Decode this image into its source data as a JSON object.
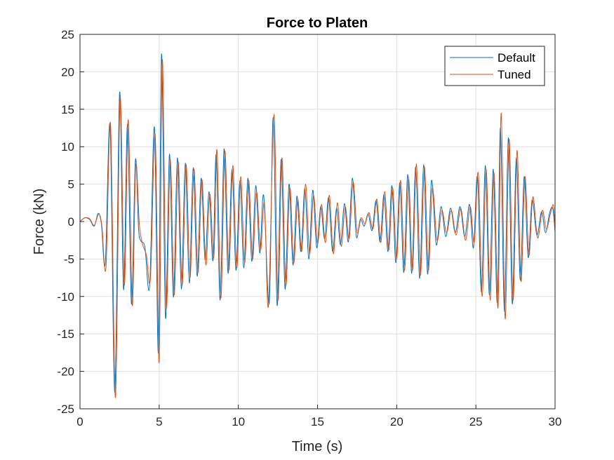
{
  "chart_data": {
    "type": "line",
    "title": "Force to Platen",
    "xlabel": "Time (s)",
    "ylabel": "Force (kN)",
    "xlim": [
      0,
      30
    ],
    "ylim": [
      -25,
      25
    ],
    "xticks": [
      0,
      5,
      10,
      15,
      20,
      25,
      30
    ],
    "yticks": [
      25,
      20,
      15,
      10,
      5,
      0,
      -5,
      -10,
      -15,
      -20,
      -25
    ],
    "grid": true,
    "legend_position": "top-right",
    "series": [
      {
        "name": "Default",
        "color": "#0072BD",
        "points": [
          [
            0,
            0
          ],
          [
            0.3,
            0.5
          ],
          [
            0.6,
            0.3
          ],
          [
            0.9,
            -0.6
          ],
          [
            1.15,
            1.1
          ],
          [
            1.35,
            -0.3
          ],
          [
            1.6,
            -5.5
          ],
          [
            1.9,
            12.8
          ],
          [
            2.2,
            -22.8
          ],
          [
            2.5,
            17.2
          ],
          [
            2.75,
            -9.1
          ],
          [
            3.0,
            13.0
          ],
          [
            3.25,
            -11.0
          ],
          [
            3.5,
            8.2
          ],
          [
            3.7,
            -1.0
          ],
          [
            3.85,
            -2.6
          ],
          [
            4.1,
            -3.4
          ],
          [
            4.4,
            -8.6
          ],
          [
            4.7,
            12.6
          ],
          [
            4.95,
            -17.5
          ],
          [
            5.15,
            22.4
          ],
          [
            5.4,
            -12.8
          ],
          [
            5.65,
            9.0
          ],
          [
            5.9,
            -10.1
          ],
          [
            6.15,
            8.5
          ],
          [
            6.4,
            -9.0
          ],
          [
            6.65,
            7.8
          ],
          [
            6.9,
            -8.2
          ],
          [
            7.15,
            7.2
          ],
          [
            7.4,
            -7.3
          ],
          [
            7.65,
            5.8
          ],
          [
            7.9,
            -5.1
          ],
          [
            8.15,
            4.0
          ],
          [
            8.4,
            -5.2
          ],
          [
            8.6,
            8.9
          ],
          [
            8.85,
            -10.5
          ],
          [
            9.1,
            9.7
          ],
          [
            9.35,
            -6.9
          ],
          [
            9.6,
            7.0
          ],
          [
            9.85,
            -6.5
          ],
          [
            10.1,
            5.5
          ],
          [
            10.35,
            -6.2
          ],
          [
            10.6,
            5.8
          ],
          [
            10.85,
            -5.3
          ],
          [
            11.1,
            4.8
          ],
          [
            11.35,
            -4.2
          ],
          [
            11.6,
            3.5
          ],
          [
            11.95,
            -10.9
          ],
          [
            12.2,
            13.9
          ],
          [
            12.45,
            -11.2
          ],
          [
            12.7,
            8.3
          ],
          [
            12.95,
            -9.0
          ],
          [
            13.2,
            5.0
          ],
          [
            13.45,
            -5.8
          ],
          [
            13.7,
            3.4
          ],
          [
            13.95,
            -4.0
          ],
          [
            14.2,
            4.4
          ],
          [
            14.45,
            -5.0
          ],
          [
            14.7,
            4.2
          ],
          [
            14.95,
            -3.5
          ],
          [
            15.2,
            2.0
          ],
          [
            15.45,
            -2.3
          ],
          [
            15.7,
            3.2
          ],
          [
            15.95,
            -4.0
          ],
          [
            16.2,
            1.8
          ],
          [
            16.45,
            -3.1
          ],
          [
            16.7,
            2.4
          ],
          [
            16.95,
            -2.7
          ],
          [
            17.2,
            5.8
          ],
          [
            17.45,
            -2.0
          ],
          [
            17.7,
            0.3
          ],
          [
            17.95,
            -0.6
          ],
          [
            18.2,
            1.0
          ],
          [
            18.45,
            -1.2
          ],
          [
            18.7,
            2.8
          ],
          [
            18.95,
            -2.7
          ],
          [
            19.2,
            3.6
          ],
          [
            19.45,
            -4.0
          ],
          [
            19.7,
            4.8
          ],
          [
            19.95,
            -5.5
          ],
          [
            20.2,
            5.2
          ],
          [
            20.45,
            -6.8
          ],
          [
            20.7,
            6.3
          ],
          [
            20.95,
            -6.9
          ],
          [
            21.2,
            7.3
          ],
          [
            21.45,
            -7.6
          ],
          [
            21.7,
            7.6
          ],
          [
            21.95,
            -7.0
          ],
          [
            22.2,
            5.5
          ],
          [
            22.5,
            -3.1
          ],
          [
            22.8,
            2.0
          ],
          [
            23.1,
            -2.0
          ],
          [
            23.4,
            1.8
          ],
          [
            23.7,
            -1.5
          ],
          [
            24.0,
            2.0
          ],
          [
            24.3,
            -2.0
          ],
          [
            24.6,
            2.3
          ],
          [
            24.85,
            -3.5
          ],
          [
            25.1,
            6.0
          ],
          [
            25.35,
            -9.4
          ],
          [
            25.6,
            7.5
          ],
          [
            25.85,
            -9.8
          ],
          [
            26.1,
            7.0
          ],
          [
            26.35,
            -10.8
          ],
          [
            26.55,
            12.5
          ],
          [
            26.8,
            -12.0
          ],
          [
            27.05,
            11.2
          ],
          [
            27.3,
            -11.0
          ],
          [
            27.55,
            8.5
          ],
          [
            27.8,
            -7.8
          ],
          [
            28.05,
            6.0
          ],
          [
            28.3,
            -4.8
          ],
          [
            28.55,
            2.9
          ],
          [
            28.85,
            -1.8
          ],
          [
            29.15,
            1.3
          ],
          [
            29.4,
            -1.5
          ],
          [
            29.65,
            1.1
          ],
          [
            29.85,
            1.8
          ],
          [
            30,
            -1.4
          ]
        ]
      },
      {
        "name": "Tuned",
        "color": "#D95319",
        "points": [
          [
            0,
            0
          ],
          [
            0.3,
            0.5
          ],
          [
            0.6,
            0.4
          ],
          [
            0.9,
            -0.5
          ],
          [
            1.18,
            1.0
          ],
          [
            1.38,
            -0.5
          ],
          [
            1.64,
            -6.2
          ],
          [
            1.93,
            13.0
          ],
          [
            2.24,
            -23.5
          ],
          [
            2.53,
            16.5
          ],
          [
            2.8,
            -8.5
          ],
          [
            3.05,
            13.6
          ],
          [
            3.3,
            -11.2
          ],
          [
            3.52,
            7.5
          ],
          [
            3.75,
            -0.4
          ],
          [
            3.95,
            -3.0
          ],
          [
            4.2,
            -4.5
          ],
          [
            4.45,
            -7.5
          ],
          [
            4.75,
            11.6
          ],
          [
            5.0,
            -18.8
          ],
          [
            5.2,
            21.6
          ],
          [
            5.45,
            -11.5
          ],
          [
            5.7,
            8.3
          ],
          [
            5.95,
            -9.8
          ],
          [
            6.2,
            8.0
          ],
          [
            6.45,
            -8.5
          ],
          [
            6.7,
            7.6
          ],
          [
            6.95,
            -7.5
          ],
          [
            7.2,
            7.0
          ],
          [
            7.45,
            -6.8
          ],
          [
            7.7,
            5.6
          ],
          [
            7.95,
            -5.8
          ],
          [
            8.2,
            3.7
          ],
          [
            8.45,
            -4.8
          ],
          [
            8.65,
            9.6
          ],
          [
            8.9,
            -10.2
          ],
          [
            9.15,
            9.4
          ],
          [
            9.4,
            -6.5
          ],
          [
            9.65,
            7.5
          ],
          [
            9.9,
            -6.2
          ],
          [
            10.15,
            6.0
          ],
          [
            10.4,
            -5.5
          ],
          [
            10.65,
            5.5
          ],
          [
            10.9,
            -5.0
          ],
          [
            11.15,
            4.0
          ],
          [
            11.4,
            -3.8
          ],
          [
            11.65,
            2.5
          ],
          [
            11.9,
            -11.3
          ],
          [
            12.25,
            14.3
          ],
          [
            12.5,
            -10.5
          ],
          [
            12.75,
            8.5
          ],
          [
            13.0,
            -8.5
          ],
          [
            13.25,
            4.5
          ],
          [
            13.5,
            -5.5
          ],
          [
            13.75,
            3.0
          ],
          [
            14.0,
            -4.0
          ],
          [
            14.25,
            5.0
          ],
          [
            14.5,
            -4.3
          ],
          [
            14.75,
            3.5
          ],
          [
            15.0,
            -3.0
          ],
          [
            15.25,
            2.3
          ],
          [
            15.5,
            -2.8
          ],
          [
            15.75,
            3.5
          ],
          [
            16.0,
            -4.3
          ],
          [
            16.25,
            2.5
          ],
          [
            16.5,
            -3.3
          ],
          [
            16.75,
            2.0
          ],
          [
            17.0,
            -2.3
          ],
          [
            17.25,
            5.3
          ],
          [
            17.5,
            -1.4
          ],
          [
            17.75,
            0.5
          ],
          [
            18.0,
            -0.3
          ],
          [
            18.25,
            1.2
          ],
          [
            18.5,
            -1.0
          ],
          [
            18.75,
            3.0
          ],
          [
            19.0,
            -2.8
          ],
          [
            19.25,
            4.0
          ],
          [
            19.5,
            -3.8
          ],
          [
            19.75,
            4.5
          ],
          [
            20.0,
            -5.0
          ],
          [
            20.25,
            5.5
          ],
          [
            20.5,
            -6.5
          ],
          [
            20.75,
            6.0
          ],
          [
            21.0,
            -6.5
          ],
          [
            21.25,
            7.7
          ],
          [
            21.5,
            -7.2
          ],
          [
            21.75,
            7.3
          ],
          [
            22.0,
            -6.5
          ],
          [
            22.25,
            4.5
          ],
          [
            22.55,
            -2.5
          ],
          [
            22.85,
            1.5
          ],
          [
            23.15,
            -1.5
          ],
          [
            23.45,
            1.5
          ],
          [
            23.75,
            -1.8
          ],
          [
            24.05,
            1.8
          ],
          [
            24.35,
            -2.5
          ],
          [
            24.65,
            2.0
          ],
          [
            24.9,
            -2.8
          ],
          [
            25.15,
            6.5
          ],
          [
            25.4,
            -10.0
          ],
          [
            25.65,
            7.0
          ],
          [
            25.9,
            -10.5
          ],
          [
            26.15,
            6.5
          ],
          [
            26.4,
            -11.5
          ],
          [
            26.6,
            14.5
          ],
          [
            26.85,
            -13.0
          ],
          [
            27.1,
            11.0
          ],
          [
            27.35,
            -10.5
          ],
          [
            27.6,
            9.5
          ],
          [
            27.85,
            -8.0
          ],
          [
            28.1,
            6.0
          ],
          [
            28.35,
            -4.5
          ],
          [
            28.6,
            3.3
          ],
          [
            28.9,
            -2.2
          ],
          [
            29.2,
            1.5
          ],
          [
            29.45,
            -1.0
          ],
          [
            29.7,
            1.0
          ],
          [
            29.9,
            2.2
          ],
          [
            30,
            -1.3
          ]
        ]
      }
    ]
  }
}
